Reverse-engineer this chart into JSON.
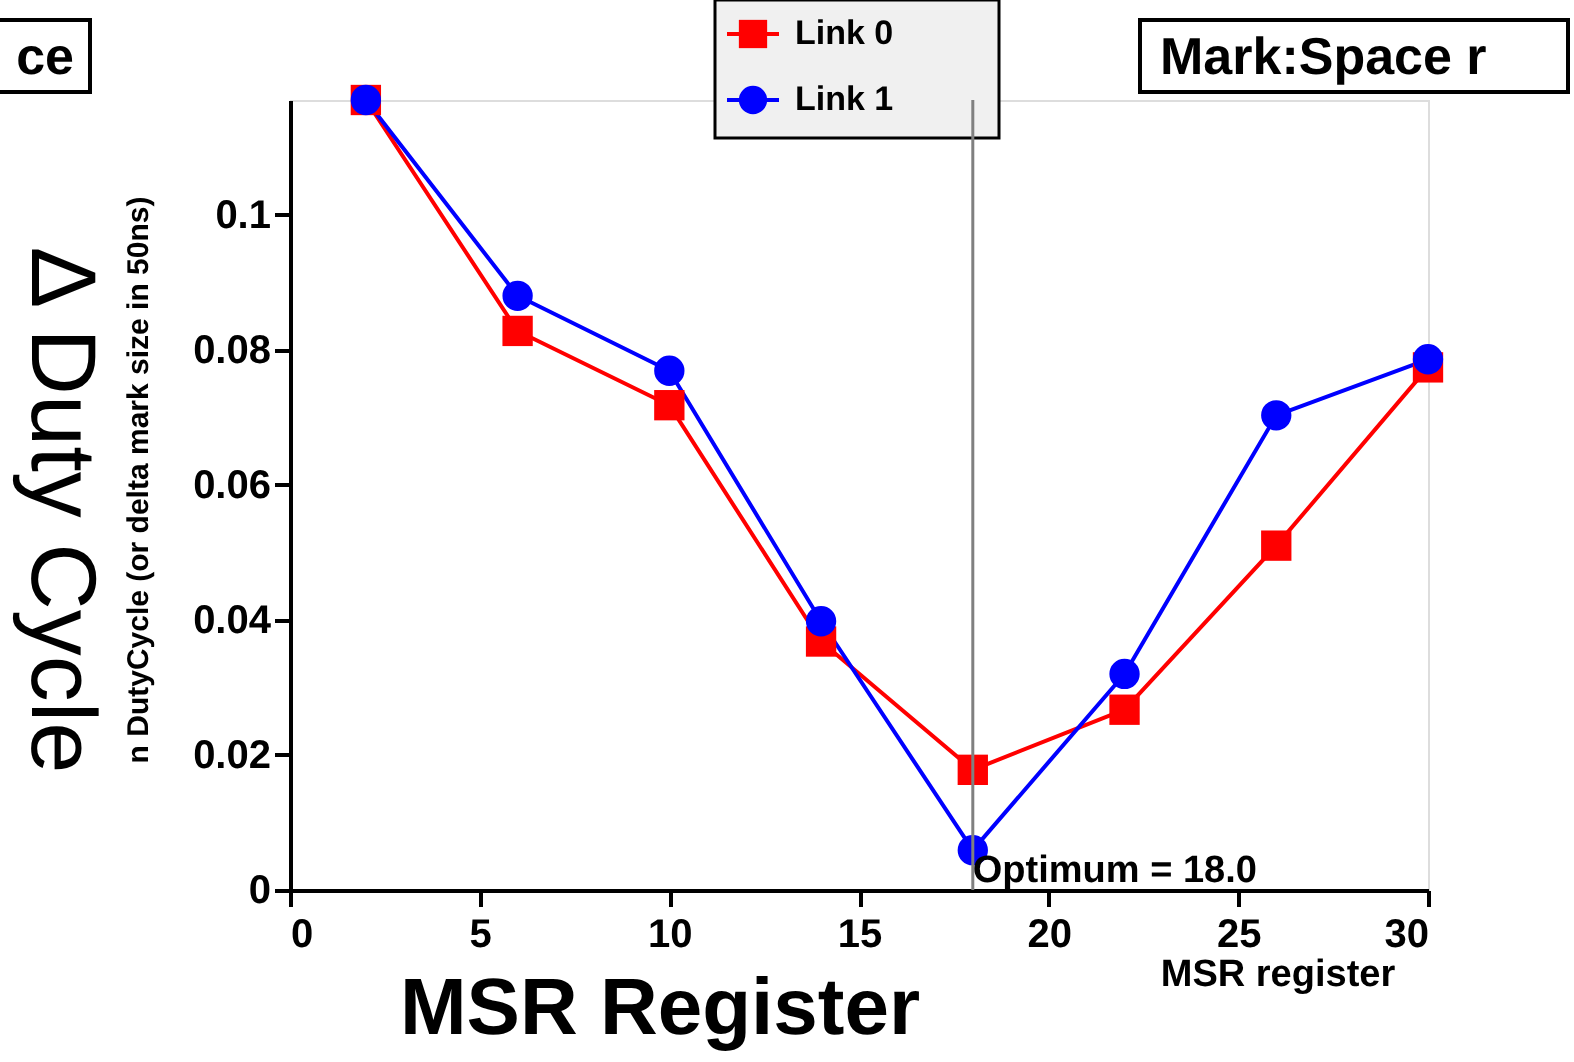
{
  "chart_data": {
    "type": "line",
    "title": "Mark:Space r",
    "xlabel": "MSR Register",
    "ylabel": "Δ Duty Cycle",
    "annotations": [
      "ce",
      "n DutyCycle (or delta mark size in 50ns)",
      "MSR register"
    ],
    "x": [
      2,
      6,
      10,
      14,
      18,
      22,
      26,
      30
    ],
    "series": [
      {
        "name": "Link 0",
        "color": "#ff0000",
        "marker": "square",
        "values": [
          0.117,
          0.0828,
          0.0718,
          0.0368,
          0.0178,
          0.0267,
          0.051,
          0.0774
        ]
      },
      {
        "name": "Link 1",
        "color": "#0000ff",
        "marker": "circle",
        "values": [
          0.117,
          0.088,
          0.0769,
          0.0398,
          0.0059,
          0.032,
          0.0703,
          0.0786
        ]
      }
    ],
    "xlim": [
      0,
      30
    ],
    "ylim": [
      0,
      0.117
    ],
    "xticks": [
      0,
      5,
      10,
      15,
      20,
      25,
      30
    ],
    "yticks": [
      0,
      0.02,
      0.04,
      0.06,
      0.08,
      0.1
    ],
    "ref_lines": [
      {
        "axis": "x",
        "value": 18,
        "label": "Optimum =  18.0",
        "color": "#808080"
      }
    ],
    "grid": false,
    "legend": "top",
    "line_style": "solid"
  }
}
